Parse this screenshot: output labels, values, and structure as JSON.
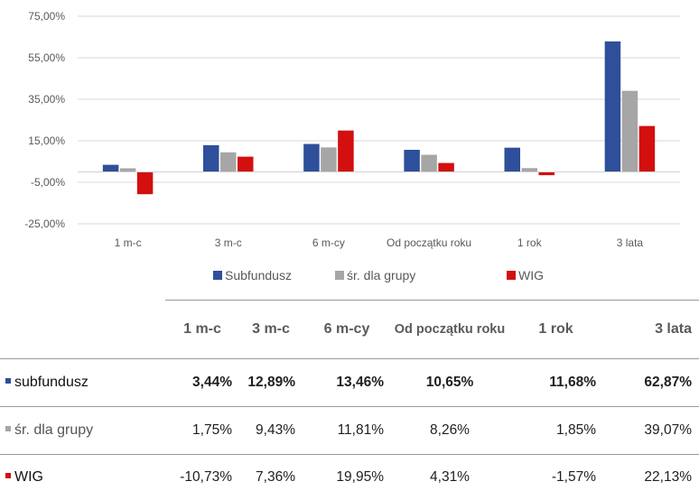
{
  "chart_data": {
    "type": "bar",
    "title": "",
    "xlabel": "",
    "ylabel": "",
    "categories": [
      "1 m-c",
      "3 m-c",
      "6 m-cy",
      "Od początku roku",
      "1 rok",
      "3 lata"
    ],
    "series": [
      {
        "name": "Subfundusz",
        "color": "#2e4f9a",
        "values": [
          3.44,
          12.89,
          13.46,
          10.65,
          11.68,
          62.87
        ]
      },
      {
        "name": "śr. dla grupy",
        "color": "#a6a6a6",
        "values": [
          1.75,
          9.43,
          11.81,
          8.26,
          1.85,
          39.07
        ]
      },
      {
        "name": "WIG",
        "color": "#d40f0f",
        "values": [
          -10.73,
          7.36,
          19.95,
          4.31,
          -1.57,
          22.13
        ]
      }
    ],
    "ylim": [
      -25,
      75
    ],
    "yticks": [
      75,
      55,
      35,
      15,
      -5,
      -25
    ],
    "ytick_labels": [
      "75,00%",
      "55,00%",
      "35,00%",
      "15,00%",
      "-5,00%",
      "-25,00%"
    ],
    "grid": true,
    "legend_position": "bottom"
  },
  "table": {
    "headers": [
      "1 m-c",
      "3 m-c",
      "6 m-cy",
      "Od początku roku",
      "1 rok",
      "3 lata"
    ],
    "rows": [
      {
        "name": "subfundusz",
        "color": "#2e4f9a",
        "values": [
          "3,44%",
          "12,89%",
          "13,46%",
          "10,65%",
          "11,68%",
          "62,87%"
        ]
      },
      {
        "name": "śr. dla grupy",
        "color": "#a6a6a6",
        "values": [
          "1,75%",
          "9,43%",
          "11,81%",
          "8,26%",
          "1,85%",
          "39,07%"
        ]
      },
      {
        "name": "WIG",
        "color": "#d40f0f",
        "values": [
          "-10,73%",
          "7,36%",
          "19,95%",
          "4,31%",
          "-1,57%",
          "22,13%"
        ]
      }
    ]
  }
}
